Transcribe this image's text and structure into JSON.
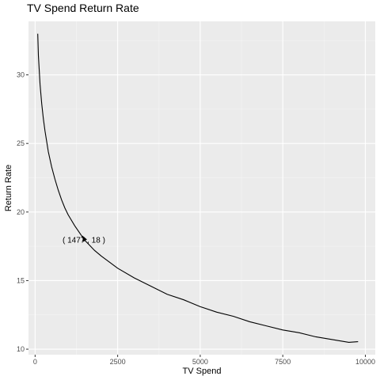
{
  "chart_data": {
    "type": "line",
    "title": "TV Spend Return Rate",
    "xlabel": "TV Spend",
    "ylabel": "Return Rate",
    "xlim": [
      -200,
      10300
    ],
    "ylim": [
      9.6,
      33.9
    ],
    "x_ticks": [
      0,
      2500,
      5000,
      7500,
      10000
    ],
    "x_tick_labels": [
      "0",
      "2500",
      "5000",
      "7500",
      "10000"
    ],
    "y_ticks": [
      10,
      15,
      20,
      25,
      30
    ],
    "y_tick_labels": [
      "10",
      "15",
      "20",
      "25",
      "30"
    ],
    "grid": true,
    "series": [
      {
        "x": [
          80,
          100,
          150,
          200,
          250,
          300,
          400,
          500,
          600,
          700,
          800,
          900,
          1000,
          1200,
          1400,
          1477,
          1600,
          1800,
          2000,
          2500,
          3000,
          3500,
          4000,
          4500,
          5000,
          5500,
          6000,
          6500,
          7000,
          7500,
          8000,
          8500,
          9000,
          9500,
          9780
        ],
        "y": [
          33.0,
          31.4,
          29.3,
          27.9,
          26.8,
          25.9,
          24.4,
          23.3,
          22.4,
          21.6,
          20.9,
          20.3,
          19.8,
          19.0,
          18.3,
          18.0,
          17.7,
          17.2,
          16.8,
          15.9,
          15.2,
          14.6,
          14.0,
          13.6,
          13.1,
          12.7,
          12.4,
          12.0,
          11.7,
          11.4,
          11.2,
          10.9,
          10.7,
          10.5,
          10.55
        ]
      }
    ],
    "annotation": {
      "x": 1477,
      "y": 18,
      "label": "( 1477 , 18 )"
    }
  }
}
